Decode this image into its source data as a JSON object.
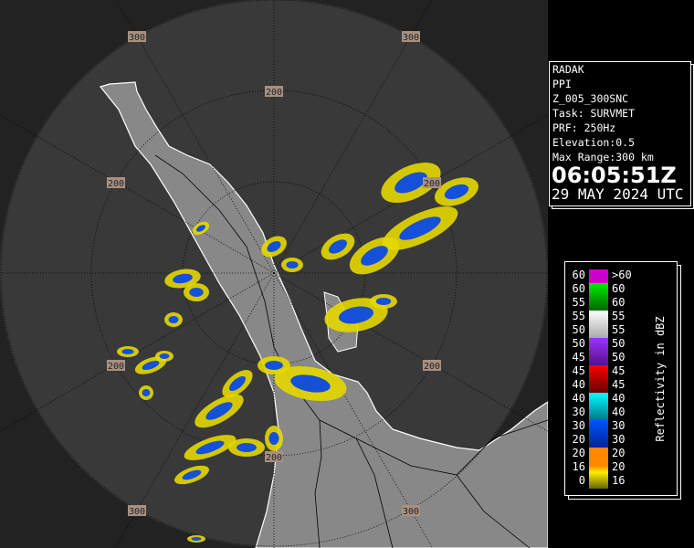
{
  "info": {
    "lines": [
      "RADAK",
      "PPI",
      "Z_005_300SNC",
      "Task: SURVMET",
      "PRF: 250Hz",
      "Elevation:0.5",
      "Max Range:300 km"
    ],
    "time": "06:05:51Z",
    "date": "29 MAY 2024 UTC"
  },
  "legend": {
    "title": "Reflectivity in dBZ",
    "left_labels": [
      "60",
      "60",
      "55",
      "55",
      "50",
      "50",
      "45",
      "45",
      "40",
      "40",
      "30",
      "30",
      "20",
      "20",
      "16",
      "0"
    ],
    "right_labels": [
      ">60",
      "60",
      "60",
      "55",
      "55",
      "50",
      "50",
      "45",
      "45",
      "40",
      "40",
      "30",
      "30",
      "20",
      "20",
      "16"
    ],
    "colors": [
      "#cc00cc",
      "#00ee00",
      "#ffffff",
      "#9933ff",
      "#ff0000",
      "#00ffff",
      "#0055ff",
      "#ff8800",
      "#ffee00",
      "#666600"
    ]
  },
  "map": {
    "range_rings_km": [
      100,
      200,
      300
    ],
    "range_labels": [
      "300",
      "300",
      "200",
      "200",
      "200",
      "200",
      "200",
      "200",
      "300",
      "300"
    ],
    "colors": {
      "outside": "#222222",
      "inside": "#393939",
      "land": "#8a8a8a",
      "coast": "#ffffff"
    }
  }
}
